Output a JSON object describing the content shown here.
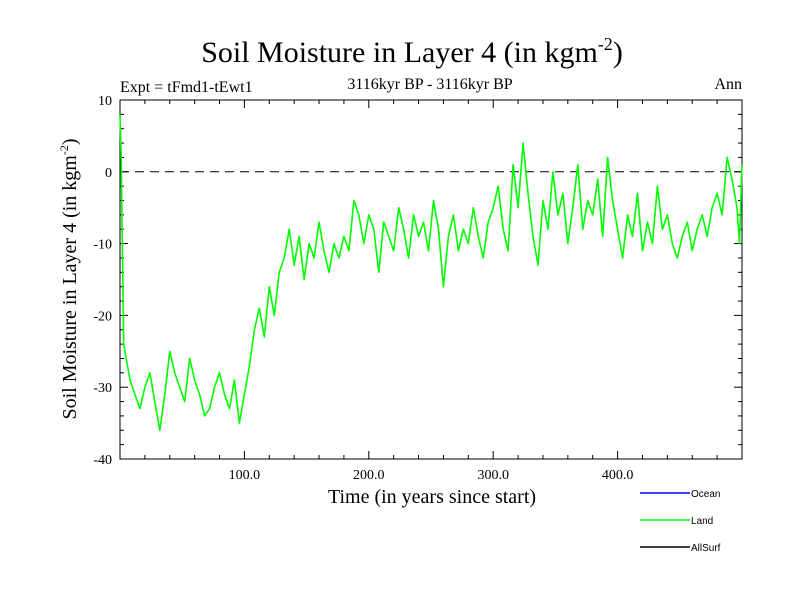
{
  "chart_data": {
    "type": "line",
    "title": "Soil Moisture in Layer 4 (in kgm",
    "title_sup": "-2",
    "title_close": ")",
    "subtitle": "3116kyr BP - 3116kyr BP",
    "experiment_label": "Expt = tFmd1-tEwt1",
    "season_label": "Ann",
    "xlabel": "Time (in years since start)",
    "ylabel": "Soil Moisture in Layer 4 (in kgm",
    "ylabel_sup": "-2",
    "ylabel_close": ")",
    "xlim": [
      0,
      500
    ],
    "ylim": [
      -40,
      10
    ],
    "x_ticks": [
      100,
      200,
      300,
      400
    ],
    "x_tick_labels": [
      "100.0",
      "200.0",
      "300.0",
      "400.0"
    ],
    "y_ticks": [
      -40,
      -30,
      -20,
      -10,
      0,
      10
    ],
    "y_tick_labels": [
      "-40",
      "-30",
      "-20",
      "-10",
      "0",
      "10"
    ],
    "reference_line": 0,
    "legend": [
      {
        "name": "Ocean",
        "color": "#0000ff"
      },
      {
        "name": "Land",
        "color": "#00ff00"
      },
      {
        "name": "AllSurf",
        "color": "#000000"
      }
    ],
    "series": [
      {
        "name": "Land",
        "color": "#00ff00",
        "x": [
          0,
          1,
          2,
          3,
          5,
          8,
          12,
          16,
          20,
          24,
          28,
          32,
          36,
          40,
          44,
          48,
          52,
          56,
          60,
          64,
          68,
          72,
          76,
          80,
          84,
          88,
          92,
          96,
          100,
          104,
          108,
          112,
          116,
          120,
          124,
          128,
          132,
          136,
          140,
          144,
          148,
          152,
          156,
          160,
          164,
          168,
          172,
          176,
          180,
          184,
          188,
          192,
          196,
          200,
          204,
          208,
          212,
          216,
          220,
          224,
          228,
          232,
          236,
          240,
          244,
          248,
          252,
          256,
          260,
          264,
          268,
          272,
          276,
          280,
          284,
          288,
          292,
          296,
          300,
          304,
          308,
          312,
          316,
          320,
          324,
          328,
          332,
          336,
          340,
          344,
          348,
          352,
          356,
          360,
          364,
          368,
          372,
          376,
          380,
          384,
          388,
          392,
          396,
          400,
          404,
          408,
          412,
          416,
          420,
          424,
          428,
          432,
          436,
          440,
          444,
          448,
          452,
          456,
          460,
          464,
          468,
          472,
          476,
          480,
          484,
          488,
          492,
          496,
          498,
          500
        ],
        "values": [
          8,
          2,
          -12,
          -24,
          -26,
          -29,
          -31,
          -33,
          -30,
          -28,
          -32,
          -36,
          -31,
          -25,
          -28,
          -30,
          -32,
          -26,
          -29,
          -31,
          -34,
          -33,
          -30,
          -28,
          -31,
          -33,
          -29,
          -35,
          -31,
          -27,
          -22,
          -19,
          -23,
          -16,
          -20,
          -14,
          -12,
          -8,
          -13,
          -9,
          -15,
          -10,
          -12,
          -7,
          -11,
          -14,
          -10,
          -12,
          -9,
          -11,
          -4,
          -6,
          -10,
          -6,
          -8,
          -14,
          -7,
          -9,
          -11,
          -5,
          -8,
          -12,
          -6,
          -9,
          -7,
          -11,
          -4,
          -8,
          -16,
          -9,
          -6,
          -11,
          -8,
          -10,
          -5,
          -9,
          -12,
          -7,
          -5,
          -2,
          -8,
          -11,
          1,
          -5,
          4,
          -3,
          -9,
          -13,
          -4,
          -8,
          0,
          -6,
          -3,
          -10,
          -5,
          1,
          -8,
          -4,
          -6,
          -1,
          -9,
          2,
          -4,
          -8,
          -12,
          -6,
          -9,
          -3,
          -11,
          -7,
          -10,
          -2,
          -8,
          -6,
          -10,
          -12,
          -9,
          -7,
          -11,
          -8,
          -6,
          -9,
          -5,
          -3,
          -6,
          2,
          -1,
          -5,
          -10,
          1
        ]
      }
    ]
  }
}
